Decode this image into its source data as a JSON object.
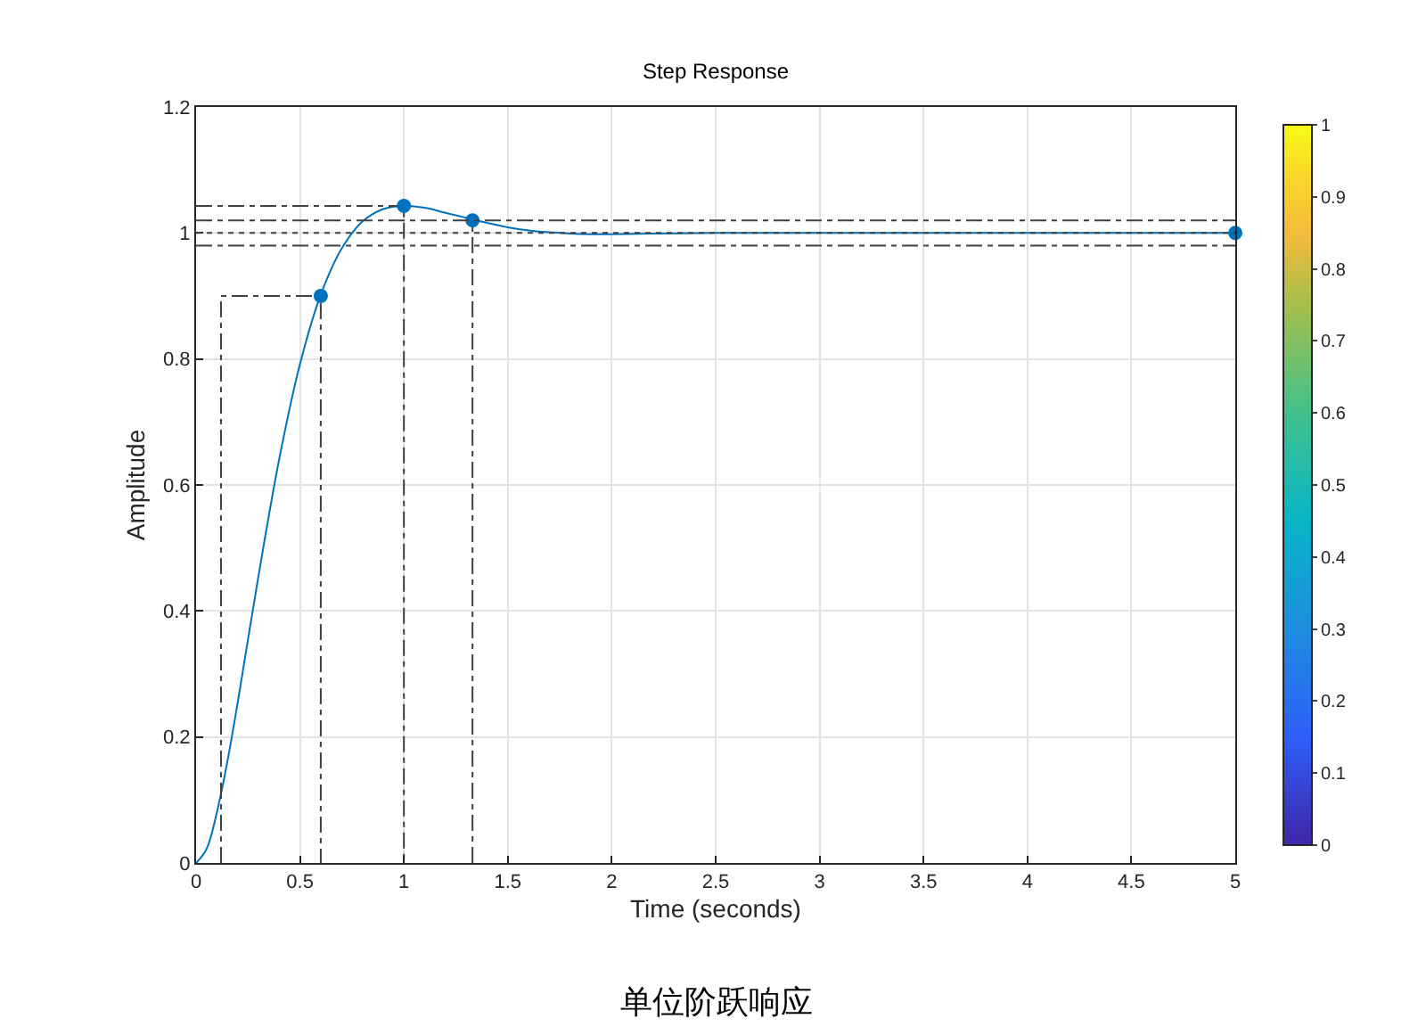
{
  "chart_data": {
    "type": "line",
    "title": "Step Response",
    "xlabel": "Time (seconds)",
    "ylabel": "Amplitude",
    "annotations": [
      "单位阶跃响应"
    ],
    "xlim": [
      0,
      5
    ],
    "xticks": [
      0,
      0.5,
      1,
      1.5,
      2,
      2.5,
      3,
      3.5,
      4,
      4.5,
      5
    ],
    "ylim": [
      0,
      1.2
    ],
    "yticks": [
      0,
      0.2,
      0.4,
      0.6,
      0.8,
      1,
      1.2
    ],
    "grid": true,
    "clim": [
      0,
      1
    ],
    "cticks": [
      0,
      0.1,
      0.2,
      0.3,
      0.4,
      0.5,
      0.6,
      0.7,
      0.8,
      0.9,
      1
    ],
    "ref_lines": [
      {
        "axis": "y",
        "value": 1.02,
        "color": "#404040",
        "line_style": "dashed"
      },
      {
        "axis": "y",
        "value": 0.98,
        "color": "#404040",
        "line_style": "dashed"
      },
      {
        "axis": "y",
        "value": 1,
        "color": "#404040",
        "line_style": "dotted"
      }
    ],
    "series": [
      {
        "color": "#0072bd",
        "line_style": "solid",
        "marker": "none",
        "x": [
          0,
          0.05,
          0.1,
          0.15,
          0.2,
          0.3,
          0.4,
          0.5,
          0.6,
          0.7,
          0.8,
          0.9,
          1.0,
          1.1,
          1.2,
          1.3,
          1.4,
          1.5,
          1.6,
          1.7,
          1.8,
          1.9,
          2.0,
          2.2,
          2.5,
          3,
          3.5,
          4,
          4.5,
          5
        ],
        "values": [
          0,
          0.022,
          0.08,
          0.16,
          0.254,
          0.455,
          0.641,
          0.792,
          0.902,
          0.975,
          1.018,
          1.038,
          1.043,
          1.04,
          1.032,
          1.024,
          1.016,
          1.009,
          1.004,
          1.001,
          0.999,
          0.998,
          0.998,
          0.999,
          1,
          1,
          1,
          1,
          1,
          1
        ]
      },
      {
        "color": "#404040",
        "line_style": "dashed",
        "marker": "none",
        "x": [
          0.12,
          0.12,
          0.6,
          0.6
        ],
        "values": [
          0,
          0.9,
          0.9,
          0
        ]
      },
      {
        "color": "#404040",
        "line_style": "dashed",
        "marker": "none",
        "x": [
          0,
          1,
          1
        ],
        "values": [
          1.043,
          1.043,
          0
        ]
      },
      {
        "color": "#404040",
        "line_style": "dashed",
        "marker": "none",
        "x": [
          1.33,
          1.33
        ],
        "values": [
          0,
          1.02
        ]
      },
      {
        "type": "scatter",
        "color": "#0072bd",
        "marker": "circle",
        "x": [
          0.6,
          1.0,
          1.33,
          5
        ],
        "values": [
          0.9,
          1.043,
          1.02,
          1
        ]
      }
    ]
  }
}
